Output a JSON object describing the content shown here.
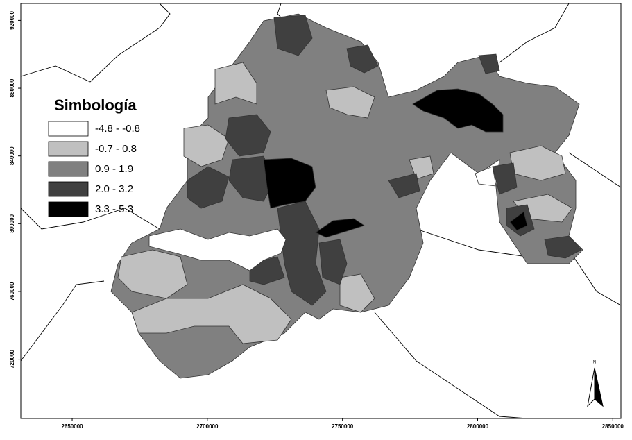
{
  "map": {
    "xlim": [
      2631000,
      2853000
    ],
    "ylim": [
      685000,
      930000
    ],
    "xticks": [
      2650000,
      2700000,
      2750000,
      2800000,
      2850000
    ],
    "yticks": [
      920000,
      880000,
      840000,
      800000,
      760000,
      720000
    ],
    "north_label": "N",
    "legend": {
      "title": "Simbología",
      "items": [
        {
          "label": "-4.8 - -0.8",
          "color": "#ffffff"
        },
        {
          "label": "-0.7 - 0.8",
          "color": "#c0c0c0"
        },
        {
          "label": "0.9 - 1.9",
          "color": "#808080"
        },
        {
          "label": "2.0 - 3.2",
          "color": "#404040"
        },
        {
          "label": "3.3 - 5.3",
          "color": "#000000"
        }
      ]
    }
  }
}
